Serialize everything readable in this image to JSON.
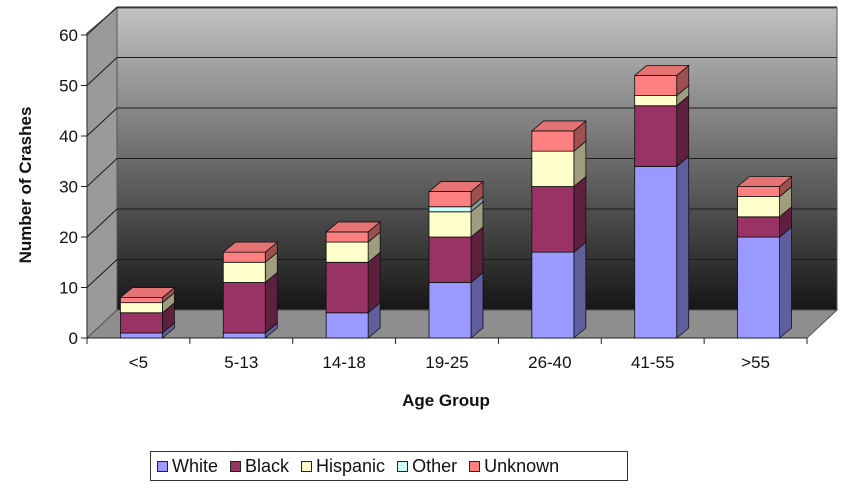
{
  "chart_data": {
    "type": "bar",
    "stacked": true,
    "three_d": true,
    "categories": [
      "<5",
      "5-13",
      "14-18",
      "19-25",
      "26-40",
      "41-55",
      ">55"
    ],
    "series": [
      {
        "name": "White",
        "color": "#9999ff",
        "values": [
          1,
          1,
          5,
          11,
          17,
          34,
          20
        ]
      },
      {
        "name": "Black",
        "color": "#993366",
        "values": [
          4,
          10,
          10,
          9,
          13,
          12,
          4
        ]
      },
      {
        "name": "Hispanic",
        "color": "#ffffcc",
        "values": [
          2,
          4,
          4,
          5,
          7,
          2,
          4
        ]
      },
      {
        "name": "Other",
        "color": "#ccffff",
        "values": [
          0,
          0,
          0,
          1,
          0,
          0,
          0
        ]
      },
      {
        "name": "Unknown",
        "color": "#ff8080",
        "values": [
          1,
          2,
          2,
          3,
          4,
          4,
          2
        ]
      }
    ],
    "xlabel": "Age Group",
    "ylabel": "Number of Crashes",
    "ylim": [
      0,
      60
    ],
    "yticks": [
      "0",
      "10",
      "20",
      "30",
      "40",
      "50",
      "60"
    ],
    "grid": true,
    "legend_position": "bottom"
  }
}
